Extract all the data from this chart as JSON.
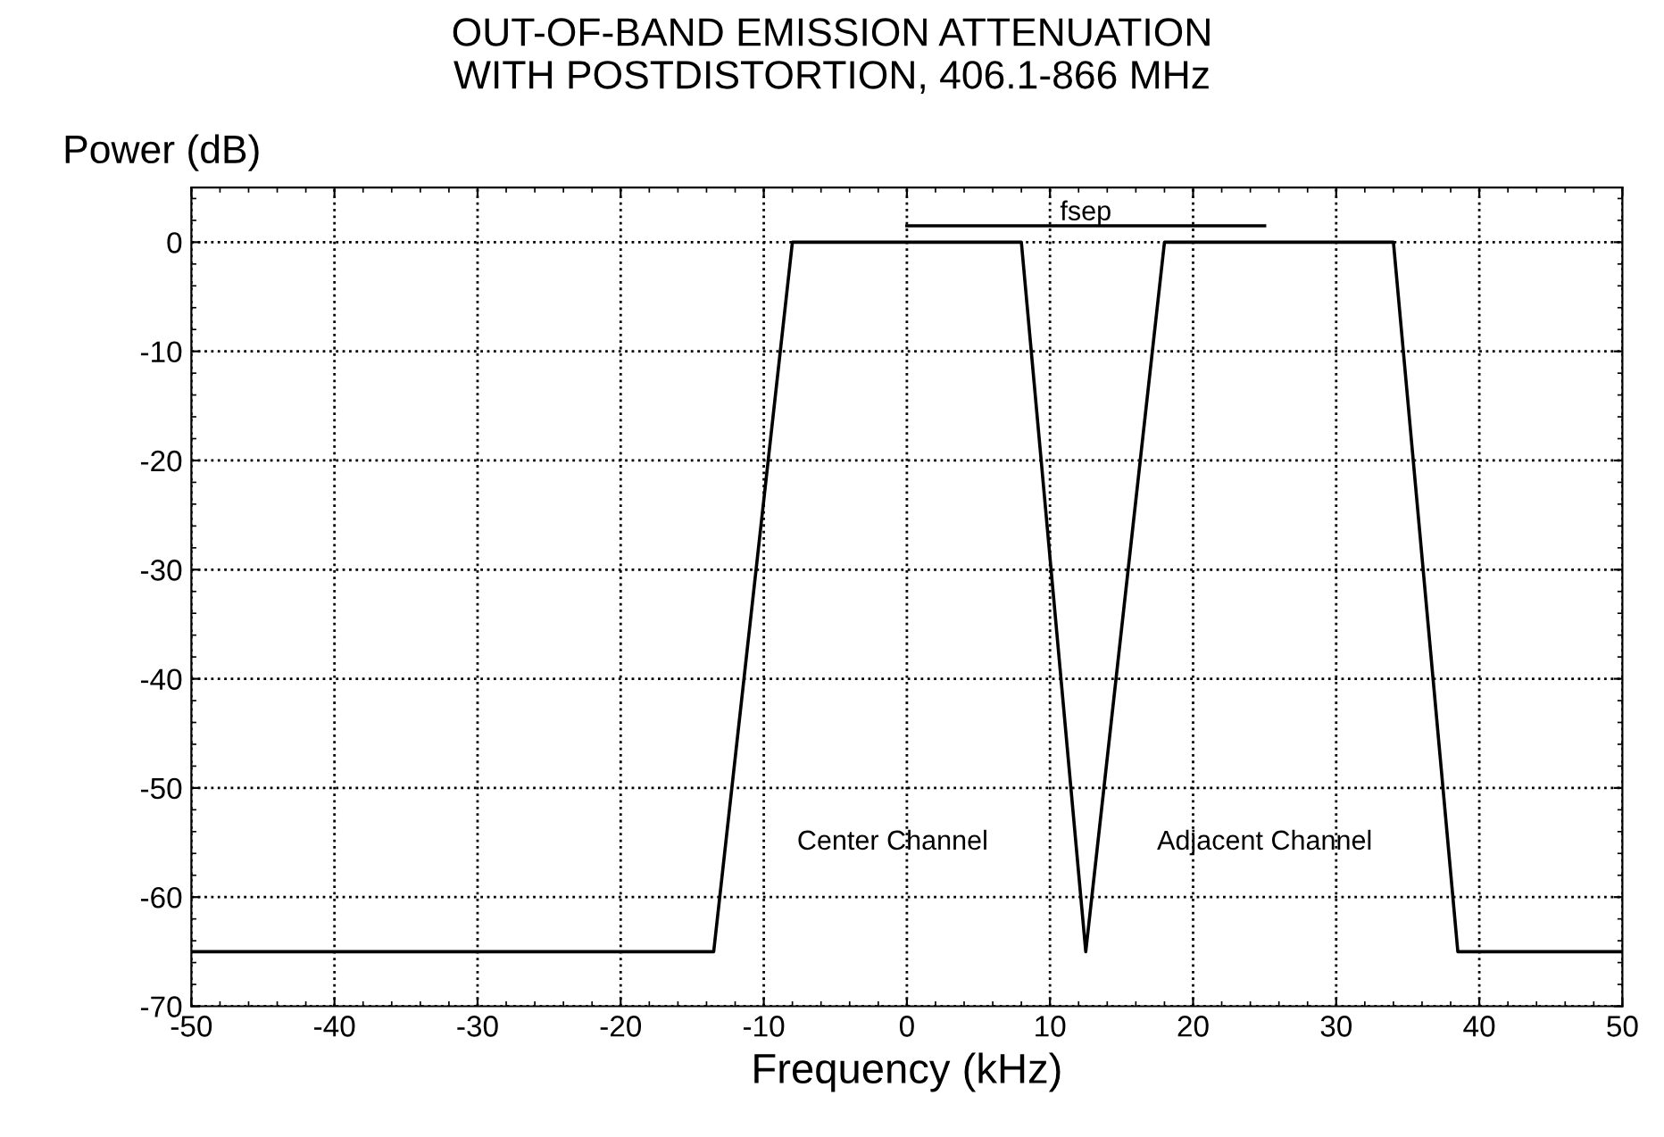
{
  "chart_data": {
    "type": "line",
    "title": "OUT-OF-BAND EMISSION ATTENUATION\nWITH POSTDISTORTION, 406.1-866 MHz",
    "xlabel": "Frequency (kHz)",
    "ylabel": "Power (dB)",
    "series": [
      {
        "color": "#000000",
        "x": [
          -50,
          -13.5,
          -8,
          8,
          12.5,
          18,
          34,
          38.5,
          50
        ],
        "values": [
          -65,
          -65,
          0,
          0,
          -65,
          0,
          0,
          -65,
          -65
        ]
      },
      {
        "color": "#000000",
        "x": [
          0,
          25
        ],
        "values": [
          1.5,
          1.5
        ]
      }
    ],
    "annotations": [
      {
        "text": "fsep",
        "x": 12.5,
        "y": 1.5
      },
      "Center Channel",
      "Adjacent Channel"
    ],
    "xlim": [
      -50,
      50
    ],
    "xticks": [
      -50,
      -40,
      -30,
      -20,
      -10,
      0,
      10,
      20,
      30,
      40,
      50
    ],
    "ylim": [
      -70,
      5
    ],
    "yticks": [
      -70,
      -60,
      -50,
      -40,
      -30,
      -20,
      -10,
      0
    ],
    "grid": true,
    "marker": "none",
    "line_style": "solid",
    "legend": false
  }
}
